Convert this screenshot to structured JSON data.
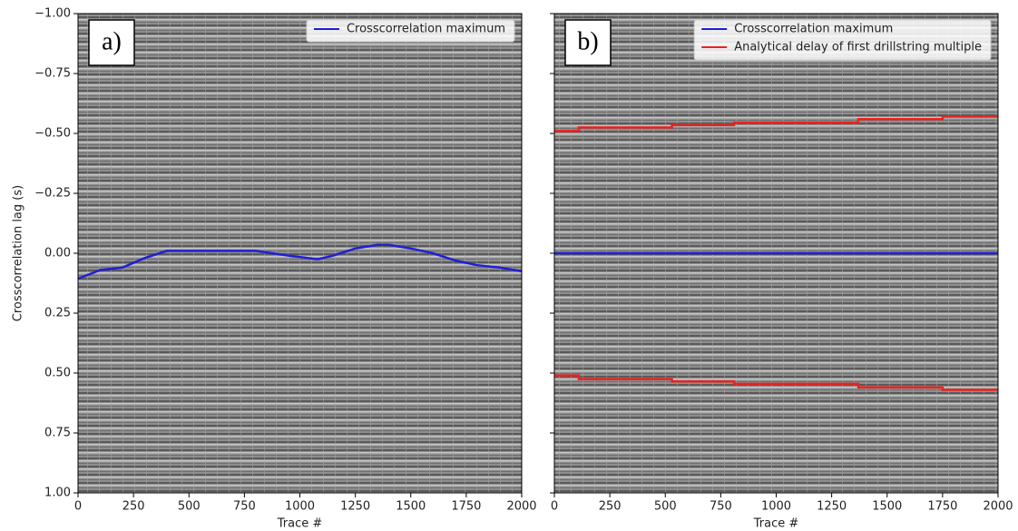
{
  "chart_data": [
    {
      "type": "line",
      "panel_label": "a)",
      "xlabel": "Trace #",
      "ylabel": "Crosscorrelation lag (s)",
      "xlim": [
        0,
        2000
      ],
      "xticks": [
        0,
        250,
        500,
        750,
        1000,
        1250,
        1500,
        1750,
        2000
      ],
      "ylim": [
        -1,
        1
      ],
      "invert_y": true,
      "yticks": [
        {
          "value": -1,
          "label": "−1.00"
        },
        {
          "value": -0.75,
          "label": "−0.75"
        },
        {
          "value": -0.5,
          "label": "−0.50"
        },
        {
          "value": -0.25,
          "label": "−0.25"
        },
        {
          "value": 0,
          "label": "0.00"
        },
        {
          "value": 0.25,
          "label": "0.25"
        },
        {
          "value": 0.5,
          "label": "0.50"
        },
        {
          "value": 0.75,
          "label": "0.75"
        },
        {
          "value": 1,
          "label": "1.00"
        }
      ],
      "legend": "upper right",
      "series": [
        {
          "name": "Crosscorrelation maximum",
          "color": "#1f1fd6",
          "x": [
            0,
            100,
            200,
            300,
            400,
            500,
            800,
            950,
            1080,
            1150,
            1250,
            1350,
            1400,
            1500,
            1600,
            1700,
            1800,
            1900,
            2000
          ],
          "values": [
            0.106,
            0.07,
            0.06,
            0.02,
            -0.01,
            -0.01,
            -0.01,
            0.01,
            0.025,
            0.01,
            -0.02,
            -0.035,
            -0.035,
            -0.02,
            0.0,
            0.03,
            0.05,
            0.06,
            0.075
          ]
        }
      ]
    },
    {
      "type": "line",
      "panel_label": "b)",
      "xlabel": "Trace #",
      "xlim": [
        0,
        2000
      ],
      "xticks": [
        0,
        250,
        500,
        750,
        1000,
        1250,
        1500,
        1750,
        2000
      ],
      "ylim": [
        -1,
        1
      ],
      "invert_y": true,
      "yticks": [
        -1,
        -0.75,
        -0.5,
        -0.25,
        0,
        0.25,
        0.5,
        0.75,
        1
      ],
      "legend": "upper right",
      "series": [
        {
          "name": "Crosscorrelation maximum",
          "color": "#1f1fd6",
          "x": [
            0,
            2000
          ],
          "values": [
            0,
            0
          ]
        },
        {
          "name": "Analytical delay of first drillstring multiple",
          "color": "#e8231f",
          "x": [
            0,
            110,
            110,
            530,
            530,
            810,
            810,
            1370,
            1370,
            1750,
            1750,
            2000,
            2000,
            0,
            110,
            110,
            530,
            530,
            810,
            810,
            1370,
            1370,
            1750,
            1750,
            2000
          ],
          "values": [
            -0.51,
            -0.51,
            -0.525,
            -0.525,
            -0.535,
            -0.535,
            -0.545,
            -0.545,
            -0.56,
            -0.56,
            -0.57,
            -0.57,
            null,
            0.51,
            0.51,
            0.525,
            0.525,
            0.535,
            0.535,
            0.545,
            0.545,
            0.56,
            0.56,
            0.57,
            0.57
          ]
        }
      ]
    }
  ]
}
